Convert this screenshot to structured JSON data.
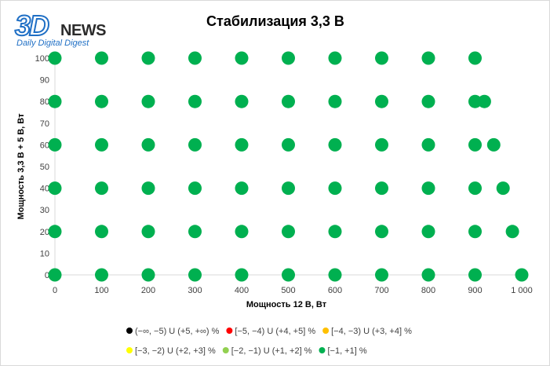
{
  "logo": {
    "mark": "3D",
    "word": "NEWS",
    "tagline": "Daily Digital Digest"
  },
  "chart_data": {
    "type": "scatter",
    "title": "Стабилизация 3,3 В",
    "xlabel": "Мощность  12 В, Вт",
    "ylabel": "Мощность  3,3 В + 5 В, Вт",
    "xlim": [
      0,
      1000
    ],
    "ylim": [
      0,
      100
    ],
    "x_ticks": [
      0,
      100,
      200,
      300,
      400,
      500,
      600,
      700,
      800,
      900,
      1000
    ],
    "x_tick_labels": [
      "0",
      "100",
      "200",
      "300",
      "400",
      "500",
      "600",
      "700",
      "800",
      "900",
      "1 000"
    ],
    "y_ticks": [
      0,
      10,
      20,
      30,
      40,
      50,
      60,
      70,
      80,
      90,
      100
    ],
    "y_tick_labels": [
      "0",
      "10",
      "20",
      "30",
      "40",
      "50",
      "60",
      "70",
      "80",
      "90",
      "100"
    ],
    "grid": false,
    "legend_position": "bottom",
    "legend": [
      {
        "label": "(−∞, −5) U (+5, +∞) %",
        "color": "#000000"
      },
      {
        "label": "[−5, −4) U (+4, +5] %",
        "color": "#ff0000"
      },
      {
        "label": "[−4, −3) U (+3, +4] %",
        "color": "#ffc000"
      },
      {
        "label": "[−3, −2) U (+2, +3] %",
        "color": "#ffff00"
      },
      {
        "label": "[−2, −1) U (+1, +2] %",
        "color": "#92d050"
      },
      {
        "label": "[−1, +1] %",
        "color": "#00b050"
      }
    ],
    "series": [
      {
        "color": "#00b050",
        "points": [
          [
            0,
            0
          ],
          [
            100,
            0
          ],
          [
            200,
            0
          ],
          [
            300,
            0
          ],
          [
            400,
            0
          ],
          [
            500,
            0
          ],
          [
            600,
            0
          ],
          [
            700,
            0
          ],
          [
            800,
            0
          ],
          [
            900,
            0
          ],
          [
            1000,
            0
          ],
          [
            0,
            20
          ],
          [
            100,
            20
          ],
          [
            200,
            20
          ],
          [
            300,
            20
          ],
          [
            400,
            20
          ],
          [
            500,
            20
          ],
          [
            600,
            20
          ],
          [
            700,
            20
          ],
          [
            800,
            20
          ],
          [
            900,
            20
          ],
          [
            980,
            20
          ],
          [
            0,
            40
          ],
          [
            100,
            40
          ],
          [
            200,
            40
          ],
          [
            300,
            40
          ],
          [
            400,
            40
          ],
          [
            500,
            40
          ],
          [
            600,
            40
          ],
          [
            700,
            40
          ],
          [
            800,
            40
          ],
          [
            900,
            40
          ],
          [
            960,
            40
          ],
          [
            0,
            60
          ],
          [
            100,
            60
          ],
          [
            200,
            60
          ],
          [
            300,
            60
          ],
          [
            400,
            60
          ],
          [
            500,
            60
          ],
          [
            600,
            60
          ],
          [
            700,
            60
          ],
          [
            800,
            60
          ],
          [
            900,
            60
          ],
          [
            940,
            60
          ],
          [
            0,
            80
          ],
          [
            100,
            80
          ],
          [
            200,
            80
          ],
          [
            300,
            80
          ],
          [
            400,
            80
          ],
          [
            500,
            80
          ],
          [
            600,
            80
          ],
          [
            700,
            80
          ],
          [
            800,
            80
          ],
          [
            900,
            80
          ],
          [
            920,
            80
          ],
          [
            0,
            100
          ],
          [
            100,
            100
          ],
          [
            200,
            100
          ],
          [
            300,
            100
          ],
          [
            400,
            100
          ],
          [
            500,
            100
          ],
          [
            600,
            100
          ],
          [
            700,
            100
          ],
          [
            800,
            100
          ],
          [
            900,
            100
          ]
        ]
      }
    ]
  }
}
